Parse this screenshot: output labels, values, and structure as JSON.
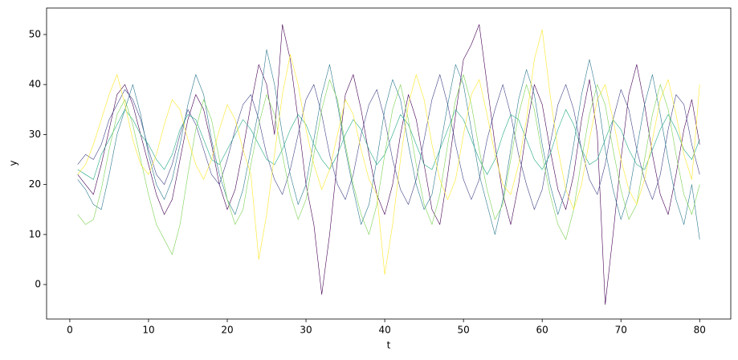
{
  "chart_data": {
    "type": "line",
    "xlabel": "t",
    "ylabel": "y",
    "x": [
      1,
      2,
      3,
      4,
      5,
      6,
      7,
      8,
      9,
      10,
      11,
      12,
      13,
      14,
      15,
      16,
      17,
      18,
      19,
      20,
      21,
      22,
      23,
      24,
      25,
      26,
      27,
      28,
      29,
      30,
      31,
      32,
      33,
      34,
      35,
      36,
      37,
      38,
      39,
      40,
      41,
      42,
      43,
      44,
      45,
      46,
      47,
      48,
      49,
      50,
      51,
      52,
      53,
      54,
      55,
      56,
      57,
      58,
      59,
      60,
      61,
      62,
      63,
      64,
      65,
      66,
      67,
      68,
      69,
      70,
      71,
      72,
      73,
      74,
      75,
      76,
      77,
      78,
      79,
      80
    ],
    "series": [
      {
        "color": "#440154",
        "values": [
          22,
          20,
          18,
          24,
          31,
          38,
          40,
          36,
          30,
          24,
          18,
          14,
          17,
          25,
          33,
          38,
          35,
          28,
          20,
          15,
          19,
          27,
          36,
          44,
          40,
          30,
          52,
          45,
          33,
          20,
          12,
          -2,
          10,
          25,
          38,
          42,
          35,
          26,
          18,
          14,
          20,
          30,
          38,
          33,
          24,
          15,
          12,
          22,
          34,
          45,
          48,
          52,
          40,
          28,
          18,
          12,
          20,
          31,
          40,
          36,
          27,
          19,
          15,
          22,
          33,
          41,
          30,
          -4,
          10,
          25,
          38,
          44,
          36,
          26,
          18,
          14,
          22,
          31,
          37,
          28
        ]
      },
      {
        "color": "#414487",
        "values": [
          24,
          26,
          25,
          28,
          33,
          36,
          39,
          37,
          33,
          27,
          22,
          20,
          24,
          30,
          35,
          32,
          27,
          22,
          20,
          25,
          31,
          36,
          38,
          33,
          26,
          21,
          18,
          23,
          30,
          37,
          40,
          34,
          26,
          20,
          17,
          22,
          30,
          36,
          39,
          33,
          25,
          19,
          16,
          21,
          29,
          37,
          42,
          36,
          28,
          21,
          17,
          21,
          29,
          35,
          40,
          34,
          26,
          20,
          15,
          19,
          28,
          36,
          40,
          35,
          27,
          21,
          18,
          24,
          33,
          39,
          35,
          27,
          21,
          17,
          22,
          31,
          38,
          36,
          28,
          22
        ]
      },
      {
        "color": "#2a788e",
        "values": [
          21,
          19,
          16,
          15,
          22,
          30,
          35,
          40,
          34,
          26,
          20,
          17,
          21,
          28,
          36,
          42,
          38,
          29,
          22,
          17,
          14,
          19,
          27,
          35,
          47,
          40,
          30,
          22,
          16,
          20,
          29,
          38,
          44,
          36,
          27,
          19,
          12,
          16,
          25,
          35,
          41,
          37,
          28,
          20,
          15,
          18,
          27,
          36,
          44,
          40,
          31,
          22,
          16,
          10,
          17,
          27,
          37,
          43,
          38,
          28,
          20,
          14,
          19,
          28,
          38,
          45,
          38,
          27,
          19,
          13,
          18,
          27,
          36,
          42,
          34,
          25,
          17,
          12,
          20,
          9
        ]
      },
      {
        "color": "#22a884",
        "values": [
          23,
          22,
          21,
          26,
          29,
          32,
          35,
          33,
          30,
          28,
          25,
          23,
          26,
          31,
          34,
          33,
          29,
          25,
          24,
          27,
          30,
          33,
          31,
          28,
          25,
          24,
          27,
          31,
          34,
          32,
          28,
          25,
          23,
          26,
          30,
          33,
          31,
          27,
          24,
          26,
          30,
          34,
          32,
          28,
          24,
          23,
          27,
          31,
          35,
          33,
          29,
          25,
          22,
          25,
          30,
          34,
          33,
          29,
          25,
          23,
          26,
          31,
          35,
          32,
          27,
          24,
          25,
          29,
          33,
          31,
          27,
          24,
          23,
          27,
          31,
          34,
          31,
          27,
          25,
          29
        ]
      },
      {
        "color": "#7ad151",
        "values": [
          14,
          12,
          13,
          19,
          27,
          34,
          37,
          32,
          25,
          18,
          12,
          9,
          6,
          12,
          22,
          31,
          37,
          33,
          25,
          17,
          12,
          15,
          24,
          32,
          38,
          34,
          26,
          18,
          13,
          17,
          26,
          35,
          41,
          37,
          28,
          20,
          14,
          10,
          16,
          26,
          35,
          40,
          33,
          24,
          16,
          12,
          18,
          28,
          37,
          42,
          36,
          27,
          19,
          13,
          16,
          25,
          34,
          40,
          35,
          26,
          18,
          12,
          9,
          15,
          25,
          34,
          40,
          36,
          27,
          19,
          13,
          16,
          25,
          34,
          40,
          35,
          26,
          18,
          14,
          20
        ]
      },
      {
        "color": "#fde725",
        "values": [
          22,
          24,
          28,
          33,
          38,
          42,
          36,
          29,
          24,
          22,
          26,
          32,
          37,
          35,
          29,
          24,
          21,
          25,
          31,
          36,
          33,
          27,
          22,
          5,
          14,
          26,
          38,
          46,
          40,
          31,
          24,
          19,
          23,
          30,
          37,
          34,
          27,
          21,
          18,
          2,
          12,
          25,
          36,
          42,
          37,
          28,
          21,
          17,
          21,
          30,
          38,
          41,
          34,
          26,
          20,
          18,
          24,
          33,
          45,
          51,
          38,
          27,
          19,
          15,
          20,
          29,
          37,
          40,
          33,
          25,
          19,
          16,
          21,
          29,
          37,
          41,
          34,
          26,
          21,
          40
        ]
      }
    ],
    "xlim": [
      -2.95,
      83.95
    ],
    "xticks": [
      0,
      10,
      20,
      30,
      40,
      50,
      60,
      70,
      80
    ],
    "ylim": [
      -6.9,
      55.3
    ],
    "yticks": [
      0,
      10,
      20,
      30,
      40,
      50
    ]
  }
}
